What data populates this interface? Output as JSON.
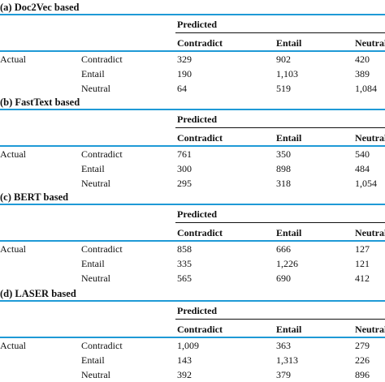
{
  "sections": [
    {
      "title": "(a) Doc2Vec based",
      "predicted": "Predicted",
      "headers": [
        "Contradict",
        "Entail",
        "Neutral"
      ],
      "actual": "Actual",
      "rows": [
        {
          "label": "Contradict",
          "values": [
            "329",
            "902",
            "420"
          ]
        },
        {
          "label": "Entail",
          "values": [
            "190",
            "1,103",
            "389"
          ]
        },
        {
          "label": "Neutral",
          "values": [
            "64",
            "519",
            "1,084"
          ]
        }
      ]
    },
    {
      "title": "(b) FastText based",
      "predicted": "Predicted",
      "headers": [
        "Contradict",
        "Entail",
        "Neutral"
      ],
      "actual": "Actual",
      "rows": [
        {
          "label": "Contradict",
          "values": [
            "761",
            "350",
            "540"
          ]
        },
        {
          "label": "Entail",
          "values": [
            "300",
            "898",
            "484"
          ]
        },
        {
          "label": "Neutral",
          "values": [
            "295",
            "318",
            "1,054"
          ]
        }
      ]
    },
    {
      "title": "(c) BERT based",
      "predicted": "Predicted",
      "headers": [
        "Contradict",
        "Entail",
        "Neutral"
      ],
      "actual": "Actual",
      "rows": [
        {
          "label": "Contradict",
          "values": [
            "858",
            "666",
            "127"
          ]
        },
        {
          "label": "Entail",
          "values": [
            "335",
            "1,226",
            "121"
          ]
        },
        {
          "label": "Neutral",
          "values": [
            "565",
            "690",
            "412"
          ]
        }
      ]
    },
    {
      "title": "(d) LASER based",
      "predicted": "Predicted",
      "headers": [
        "Contradict",
        "Entail",
        "Neutral"
      ],
      "actual": "Actual",
      "rows": [
        {
          "label": "Contradict",
          "values": [
            "1,009",
            "363",
            "279"
          ]
        },
        {
          "label": "Entail",
          "values": [
            "143",
            "1,313",
            "226"
          ]
        },
        {
          "label": "Neutral",
          "values": [
            "392",
            "379",
            "896"
          ]
        }
      ]
    }
  ]
}
